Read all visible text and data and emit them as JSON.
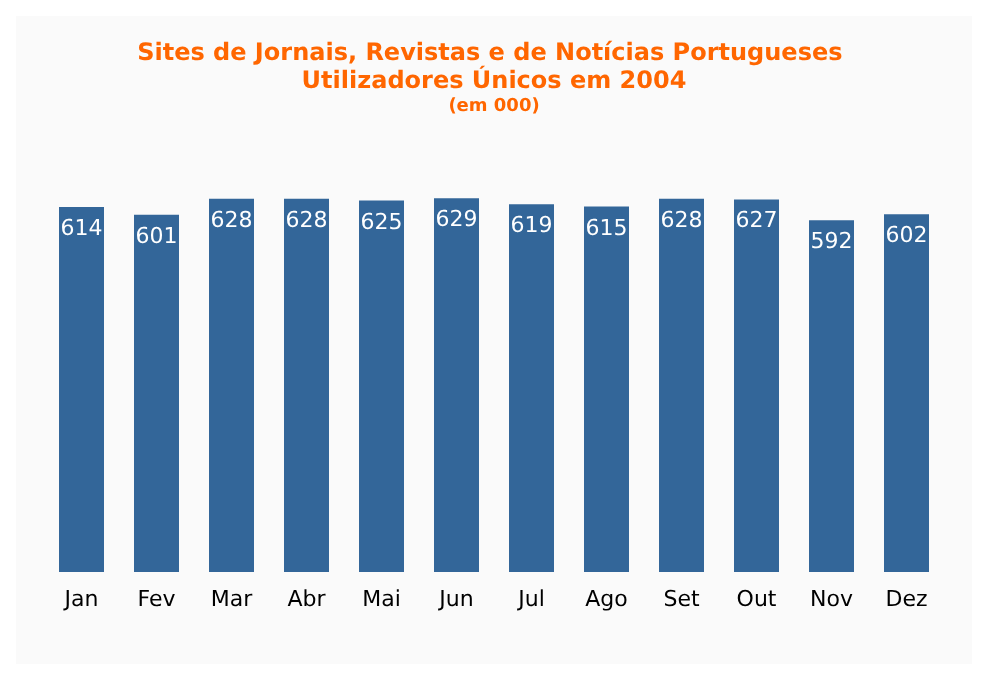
{
  "chart_data": {
    "type": "bar",
    "title": "Sites de Jornais, Revistas e de Notícias Portugueses Utilizadores Únicos em 2004",
    "subtitle": "(em 000)",
    "categories": [
      "Jan",
      "Fev",
      "Mar",
      "Abr",
      "Mai",
      "Jun",
      "Jul",
      "Ago",
      "Set",
      "Out",
      "Nov",
      "Dez"
    ],
    "values": [
      614,
      601,
      628,
      628,
      625,
      629,
      619,
      615,
      628,
      627,
      592,
      602
    ],
    "color": "#336699",
    "data_labels": true
  }
}
